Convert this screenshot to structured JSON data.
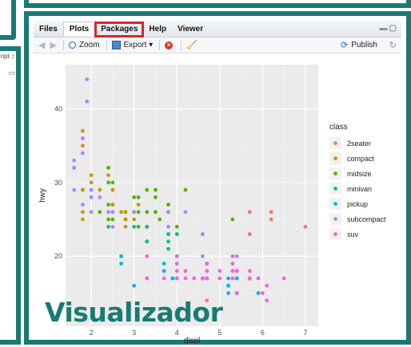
{
  "left_pane": {
    "script_label": "ript ↕"
  },
  "tabs": [
    {
      "label": "Files"
    },
    {
      "label": "Plots"
    },
    {
      "label": "Packages"
    },
    {
      "label": "Help"
    },
    {
      "label": "Viewer"
    }
  ],
  "toolbar": {
    "zoom_label": "Zoom",
    "export_label": "Export ▾",
    "publish_label": "Publish"
  },
  "overlay_label": "Visualizador",
  "colors": {
    "frame": "#1a7a73",
    "highlight": "#d9262c",
    "panel_bg": "#ebebeb"
  },
  "chart_data": {
    "type": "scatter",
    "title": "",
    "xlabel": "displ",
    "ylabel": "hwy",
    "xlim": [
      1.4,
      7.3
    ],
    "ylim": [
      10.5,
      46
    ],
    "xticks": [
      2,
      3,
      4,
      5,
      6,
      7
    ],
    "yticks": [
      20,
      30,
      40
    ],
    "grid": true,
    "legend": {
      "title": "class",
      "position": "right"
    },
    "series": [
      {
        "name": "2seater",
        "color": "#F8766D",
        "points": [
          [
            5.7,
            26
          ],
          [
            5.7,
            23
          ],
          [
            6.2,
            26
          ],
          [
            6.2,
            25
          ],
          [
            7.0,
            24
          ]
        ]
      },
      {
        "name": "compact",
        "color": "#C49A00",
        "points": [
          [
            1.8,
            29
          ],
          [
            1.8,
            29
          ],
          [
            2.0,
            31
          ],
          [
            2.0,
            30
          ],
          [
            2.8,
            26
          ],
          [
            2.8,
            26
          ],
          [
            3.1,
            27
          ],
          [
            1.8,
            26
          ],
          [
            1.8,
            25
          ],
          [
            2.0,
            28
          ],
          [
            2.0,
            28
          ],
          [
            2.8,
            25
          ],
          [
            2.8,
            25
          ],
          [
            2.2,
            29
          ],
          [
            2.5,
            27
          ],
          [
            2.4,
            31
          ],
          [
            2.4,
            32
          ],
          [
            2.5,
            27
          ],
          [
            2.0,
            29
          ],
          [
            1.8,
            37
          ],
          [
            1.8,
            35
          ],
          [
            2.0,
            29
          ],
          [
            2.8,
            24
          ],
          [
            3.0,
            25
          ],
          [
            3.3,
            26
          ],
          [
            2.7,
            26
          ],
          [
            2.5,
            29
          ]
        ]
      },
      {
        "name": "midsize",
        "color": "#53B400",
        "points": [
          [
            2.4,
            30
          ],
          [
            2.4,
            32
          ],
          [
            3.1,
            26
          ],
          [
            3.5,
            29
          ],
          [
            3.6,
            25
          ],
          [
            2.4,
            27
          ],
          [
            3.0,
            26
          ],
          [
            3.3,
            26
          ],
          [
            3.8,
            26
          ],
          [
            4.0,
            24
          ],
          [
            2.2,
            26
          ],
          [
            3.0,
            26
          ],
          [
            3.5,
            26
          ],
          [
            3.0,
            28
          ],
          [
            4.0,
            23
          ],
          [
            5.3,
            25
          ],
          [
            2.5,
            30
          ],
          [
            3.3,
            29
          ],
          [
            3.5,
            28
          ],
          [
            3.5,
            29
          ],
          [
            3.8,
            27
          ],
          [
            3.3,
            24
          ],
          [
            3.8,
            26
          ],
          [
            4.2,
            29
          ],
          [
            4.6,
            23
          ],
          [
            2.5,
            25
          ],
          [
            3.1,
            24
          ],
          [
            2.4,
            26
          ],
          [
            2.4,
            25
          ],
          [
            3.1,
            28
          ]
        ]
      },
      {
        "name": "minivan",
        "color": "#00C094",
        "points": [
          [
            2.4,
            24
          ],
          [
            3.0,
            24
          ],
          [
            3.3,
            22
          ],
          [
            3.3,
            22
          ],
          [
            3.3,
            24
          ],
          [
            3.3,
            24
          ],
          [
            3.3,
            17
          ],
          [
            3.8,
            22
          ],
          [
            3.8,
            21
          ],
          [
            3.8,
            23
          ],
          [
            3.8,
            23
          ],
          [
            4.0,
            23
          ]
        ]
      },
      {
        "name": "pickup",
        "color": "#00B6EB",
        "points": [
          [
            2.7,
            20
          ],
          [
            2.7,
            19
          ],
          [
            2.7,
            20
          ],
          [
            3.0,
            16
          ],
          [
            3.7,
            19
          ],
          [
            3.7,
            18
          ],
          [
            3.9,
            17
          ],
          [
            3.9,
            17
          ],
          [
            4.7,
            19
          ],
          [
            4.7,
            19
          ],
          [
            4.7,
            17
          ],
          [
            4.7,
            17
          ],
          [
            5.2,
            16
          ],
          [
            5.2,
            15
          ],
          [
            5.7,
            17
          ],
          [
            5.9,
            15
          ],
          [
            4.7,
            19
          ],
          [
            5.2,
            16
          ],
          [
            5.2,
            17
          ],
          [
            4.6,
            17
          ],
          [
            5.4,
            17
          ],
          [
            5.4,
            15
          ],
          [
            4.0,
            19
          ],
          [
            4.0,
            20
          ],
          [
            4.0,
            17
          ],
          [
            4.6,
            17
          ],
          [
            5.4,
            17
          ],
          [
            5.4,
            15
          ],
          [
            5.7,
            17
          ]
        ]
      },
      {
        "name": "subcompact",
        "color": "#A58AFF",
        "points": [
          [
            1.6,
            33
          ],
          [
            1.6,
            32
          ],
          [
            1.6,
            32
          ],
          [
            1.6,
            29
          ],
          [
            1.6,
            32
          ],
          [
            1.8,
            34
          ],
          [
            1.8,
            36
          ],
          [
            1.8,
            36
          ],
          [
            2.0,
            29
          ],
          [
            1.9,
            44
          ],
          [
            1.9,
            41
          ],
          [
            2.0,
            26
          ],
          [
            2.4,
            26
          ],
          [
            2.5,
            26
          ],
          [
            1.8,
            27
          ],
          [
            2.0,
            29
          ],
          [
            2.0,
            28
          ],
          [
            3.8,
            26
          ],
          [
            2.0,
            29
          ],
          [
            2.5,
            24
          ],
          [
            3.0,
            26
          ],
          [
            2.5,
            26
          ],
          [
            2.2,
            28
          ],
          [
            3.8,
            24
          ],
          [
            4.2,
            26
          ],
          [
            4.6,
            20
          ],
          [
            5.4,
            20
          ],
          [
            4.6,
            23
          ]
        ]
      },
      {
        "name": "suv",
        "color": "#FB61D7",
        "points": [
          [
            5.7,
            18
          ],
          [
            5.3,
            17
          ],
          [
            5.3,
            19
          ],
          [
            5.7,
            17
          ],
          [
            6.5,
            17
          ],
          [
            4.7,
            17
          ],
          [
            4.7,
            19
          ],
          [
            5.7,
            17
          ],
          [
            6.1,
            16
          ],
          [
            5.3,
            18
          ],
          [
            4.7,
            17
          ],
          [
            5.7,
            18
          ],
          [
            4.0,
            19
          ],
          [
            4.0,
            17
          ],
          [
            5.4,
            18
          ],
          [
            4.0,
            20
          ],
          [
            4.6,
            17
          ],
          [
            5.0,
            17
          ],
          [
            4.2,
            17
          ],
          [
            4.4,
            17
          ],
          [
            5.4,
            15
          ],
          [
            6.0,
            15
          ],
          [
            4.2,
            18
          ],
          [
            5.4,
            18
          ],
          [
            4.0,
            17
          ],
          [
            4.7,
            14
          ],
          [
            4.7,
            12
          ],
          [
            5.9,
            17
          ],
          [
            3.3,
            17
          ],
          [
            3.3,
            20
          ],
          [
            6.1,
            14
          ],
          [
            5.3,
            18
          ],
          [
            5.3,
            20
          ],
          [
            5.0,
            18
          ],
          [
            4.0,
            18
          ],
          [
            4.7,
            18
          ],
          [
            3.7,
            17
          ],
          [
            5.4,
            18
          ],
          [
            4.6,
            17
          ]
        ]
      }
    ]
  }
}
